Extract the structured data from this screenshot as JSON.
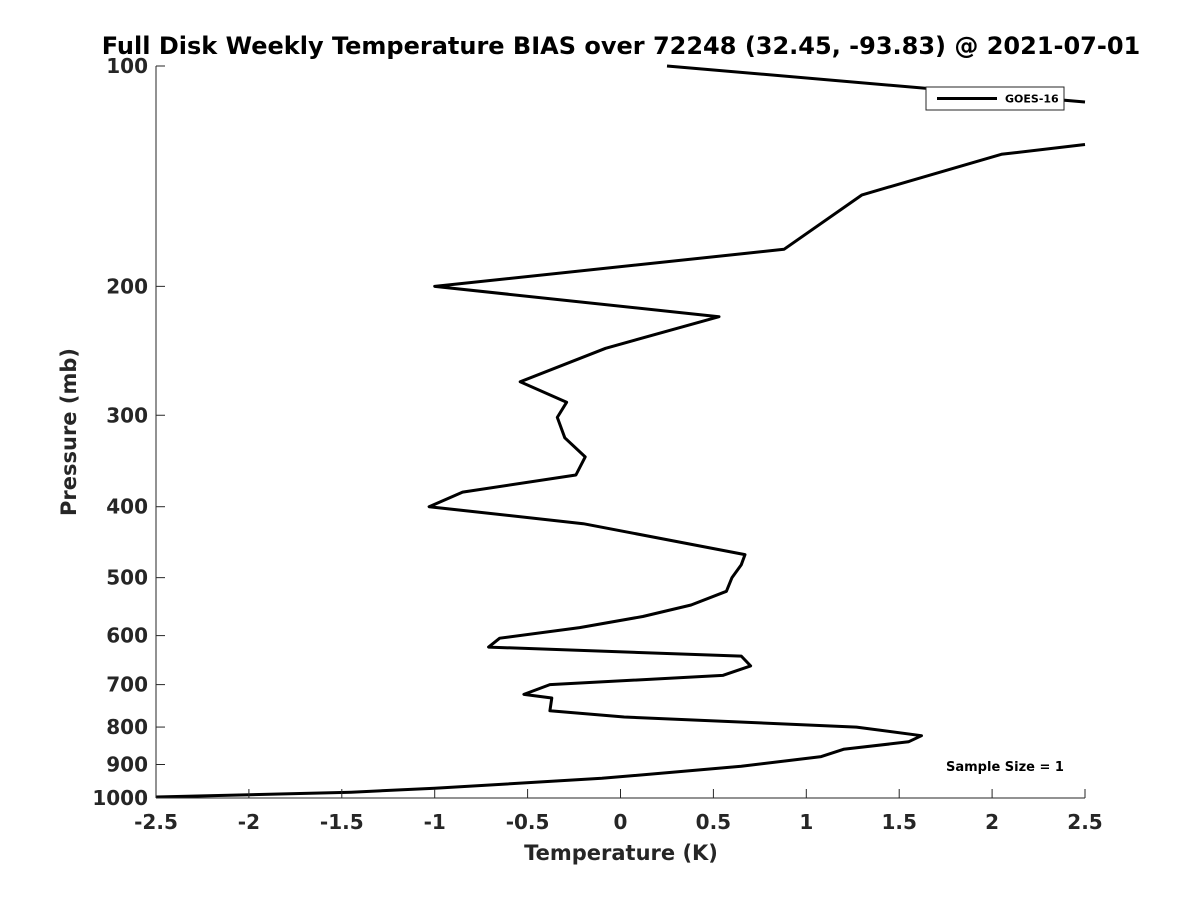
{
  "chart_data": {
    "type": "line",
    "title": "Full Disk Weekly Temperature BIAS over 72248 (32.45, -93.83) @ 2021-07-01",
    "xlabel": "Temperature (K)",
    "ylabel": "Pressure (mb)",
    "xlim": [
      -2.5,
      2.5
    ],
    "ylim": [
      100,
      1000
    ],
    "y_scale": "log",
    "y_reversed": true,
    "xticks": [
      -2.5,
      -2,
      -1.5,
      -1,
      -0.5,
      0,
      0.5,
      1,
      1.5,
      2,
      2.5
    ],
    "xtick_labels": [
      "-2.5",
      "-2",
      "-1.5",
      "-1",
      "-0.5",
      "0",
      "0.5",
      "1",
      "1.5",
      "2",
      "2.5"
    ],
    "yticks": [
      100,
      200,
      300,
      400,
      500,
      600,
      700,
      800,
      900,
      1000
    ],
    "ytick_labels": [
      "100",
      "200",
      "300",
      "400",
      "500",
      "600",
      "700",
      "800",
      "900",
      "1000"
    ],
    "grid": false,
    "legend_position": "top-right",
    "annotation": "Sample Size = 1",
    "line_color": "#000000",
    "series": [
      {
        "name": "GOES-16",
        "segments": [
          [
            {
              "x": 0.25,
              "y": 100
            },
            {
              "x": 2.5,
              "y": 112
            }
          ],
          [
            {
              "x": 2.5,
              "y": 128
            },
            {
              "x": 2.05,
              "y": 132
            },
            {
              "x": 1.3,
              "y": 150
            },
            {
              "x": 0.88,
              "y": 178
            },
            {
              "x": -1.0,
              "y": 200
            },
            {
              "x": 0.53,
              "y": 220
            },
            {
              "x": -0.08,
              "y": 243
            },
            {
              "x": -0.54,
              "y": 270
            },
            {
              "x": -0.29,
              "y": 288
            },
            {
              "x": -0.34,
              "y": 302
            },
            {
              "x": -0.3,
              "y": 322
            },
            {
              "x": -0.19,
              "y": 342
            },
            {
              "x": -0.24,
              "y": 362
            },
            {
              "x": -0.85,
              "y": 382
            },
            {
              "x": -1.03,
              "y": 400
            },
            {
              "x": -0.2,
              "y": 422
            },
            {
              "x": 0.67,
              "y": 465
            },
            {
              "x": 0.65,
              "y": 480
            },
            {
              "x": 0.6,
              "y": 500
            },
            {
              "x": 0.57,
              "y": 522
            },
            {
              "x": 0.38,
              "y": 545
            },
            {
              "x": 0.12,
              "y": 565
            },
            {
              "x": -0.22,
              "y": 585
            },
            {
              "x": -0.65,
              "y": 605
            },
            {
              "x": -0.71,
              "y": 622
            },
            {
              "x": 0.65,
              "y": 640
            },
            {
              "x": 0.7,
              "y": 660
            },
            {
              "x": 0.55,
              "y": 680
            },
            {
              "x": -0.38,
              "y": 700
            },
            {
              "x": -0.52,
              "y": 722
            },
            {
              "x": -0.37,
              "y": 730
            },
            {
              "x": -0.38,
              "y": 760
            },
            {
              "x": 0.02,
              "y": 775
            },
            {
              "x": 1.27,
              "y": 800
            },
            {
              "x": 1.62,
              "y": 822
            },
            {
              "x": 1.55,
              "y": 838
            },
            {
              "x": 1.2,
              "y": 858
            },
            {
              "x": 1.08,
              "y": 878
            },
            {
              "x": 0.65,
              "y": 905
            },
            {
              "x": -0.1,
              "y": 940
            },
            {
              "x": -1.0,
              "y": 970
            },
            {
              "x": -1.45,
              "y": 982
            },
            {
              "x": -2.5,
              "y": 997
            }
          ]
        ]
      }
    ]
  }
}
